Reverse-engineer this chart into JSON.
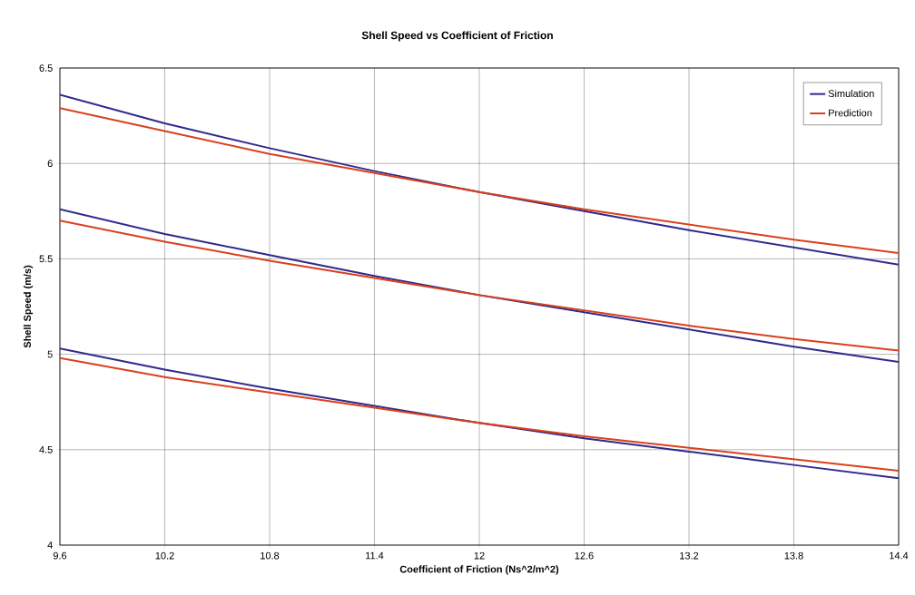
{
  "chart_data": {
    "type": "line",
    "title": "Shell Speed vs Coefficient of Friction",
    "xlabel": "Coefficient of Friction (Ns^2/m^2)",
    "ylabel": "Shell Speed (m/s)",
    "x": [
      9.6,
      10.2,
      10.8,
      11.4,
      12,
      12.6,
      13.2,
      13.8,
      14.4
    ],
    "series": [
      {
        "name": "Simulation",
        "color": "#2e2a8c",
        "values": [
          6.36,
          6.21,
          6.08,
          5.96,
          5.85,
          5.75,
          5.65,
          5.56,
          5.47
        ]
      },
      {
        "name": "Prediction",
        "color": "#d9401e",
        "values": [
          6.29,
          6.17,
          6.05,
          5.95,
          5.85,
          5.76,
          5.68,
          5.6,
          5.53
        ]
      },
      {
        "color": "#2e2a8c",
        "values": [
          5.76,
          5.63,
          5.52,
          5.41,
          5.31,
          5.22,
          5.13,
          5.04,
          4.96
        ]
      },
      {
        "color": "#d9401e",
        "values": [
          5.7,
          5.59,
          5.49,
          5.4,
          5.31,
          5.23,
          5.15,
          5.08,
          5.02
        ]
      },
      {
        "color": "#2e2a8c",
        "values": [
          5.03,
          4.92,
          4.82,
          4.73,
          4.64,
          4.56,
          4.49,
          4.42,
          4.35
        ]
      },
      {
        "color": "#d9401e",
        "values": [
          4.98,
          4.88,
          4.8,
          4.72,
          4.64,
          4.57,
          4.51,
          4.45,
          4.39
        ]
      }
    ],
    "xlim": [
      9.6,
      14.4
    ],
    "xticks": [
      9.6,
      10.2,
      10.8,
      11.4,
      12,
      12.6,
      13.2,
      13.8,
      14.4
    ],
    "ylim": [
      4,
      6.5
    ],
    "yticks": [
      4,
      4.5,
      5,
      5.5,
      6,
      6.5
    ],
    "grid": true,
    "legend": "top right",
    "marker": "none",
    "line_style": "solid"
  }
}
